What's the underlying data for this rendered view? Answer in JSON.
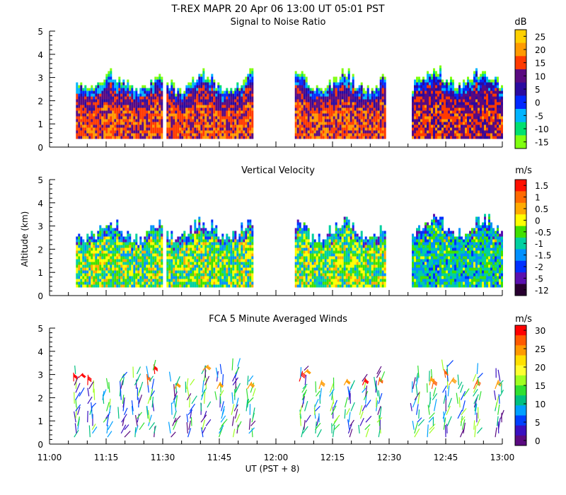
{
  "figure": {
    "main_title": "T-REX  MAPR 20 Apr 06  13:00 UT  05:01  PST",
    "ylabel": "Altitude (km)",
    "xlabel": "UT  (PST + 8)",
    "x_ticks": [
      "11:00",
      "11:15",
      "11:30",
      "11:45",
      "12:00",
      "12:15",
      "12:30",
      "12:45",
      "13:00"
    ],
    "y_ticks": [
      "0",
      "1",
      "2",
      "3",
      "4",
      "5"
    ]
  },
  "chart_data": [
    {
      "type": "heatmap",
      "title": "Signal to Noise Ratio",
      "colorbar_unit": "dB",
      "colorbar_ticks": [
        "25",
        "20",
        "15",
        "10",
        "5",
        "0",
        "-5",
        "-10",
        "-15"
      ],
      "colors": [
        "#ffd000",
        "#ff9a00",
        "#ff3a00",
        "#5a0a80",
        "#2a0aa0",
        "#0028ff",
        "#00b4ff",
        "#00e070",
        "#80ff10"
      ],
      "x_range": [
        "11:00",
        "13:00"
      ],
      "ylim": [
        0,
        5
      ],
      "data_segments": [
        [
          "11:07",
          "11:30"
        ],
        [
          "11:31",
          "11:54"
        ],
        [
          "12:05",
          "12:29"
        ],
        [
          "12:36",
          "13:00"
        ]
      ]
    },
    {
      "type": "heatmap",
      "title": "Vertical Velocity",
      "colorbar_unit": "m/s",
      "colorbar_ticks": [
        "1.5",
        "1",
        "0.5",
        "0",
        "-0.5",
        "-1",
        "-1.5",
        "-2",
        "-5",
        "-12"
      ],
      "colors": [
        "#ff1000",
        "#ff6a00",
        "#ffaa00",
        "#ffff00",
        "#40e000",
        "#00d0a0",
        "#0090ff",
        "#0030ff",
        "#5a10b0",
        "#280030"
      ],
      "x_range": [
        "11:00",
        "13:00"
      ],
      "ylim": [
        0,
        5
      ],
      "data_segments": [
        [
          "11:07",
          "11:30"
        ],
        [
          "11:31",
          "11:54"
        ],
        [
          "12:05",
          "12:29"
        ],
        [
          "12:36",
          "13:00"
        ]
      ]
    },
    {
      "type": "scatter",
      "title": "FCA 5 Minute Averaged Winds",
      "colorbar_unit": "m/s",
      "colorbar_ticks": [
        "30",
        "25",
        "20",
        "15",
        "10",
        "5",
        "0"
      ],
      "colors": [
        "#ff0000",
        "#ff5a00",
        "#ff9a00",
        "#ffe000",
        "#ffff30",
        "#a0ff20",
        "#30e030",
        "#00c080",
        "#00a0ff",
        "#0040ff",
        "#3a10c0",
        "#5a0a80"
      ],
      "x_range": [
        "11:00",
        "13:00"
      ],
      "ylim": [
        0,
        5
      ],
      "wind_columns_ut": [
        "11:07",
        "11:11",
        "11:15",
        "11:19",
        "11:23",
        "11:27",
        "11:33",
        "11:37",
        "11:41",
        "11:45",
        "11:49",
        "11:53",
        "12:07",
        "12:11",
        "12:15",
        "12:19",
        "12:23",
        "12:27",
        "12:37",
        "12:41",
        "12:45",
        "12:49",
        "12:53",
        "12:59"
      ]
    }
  ]
}
